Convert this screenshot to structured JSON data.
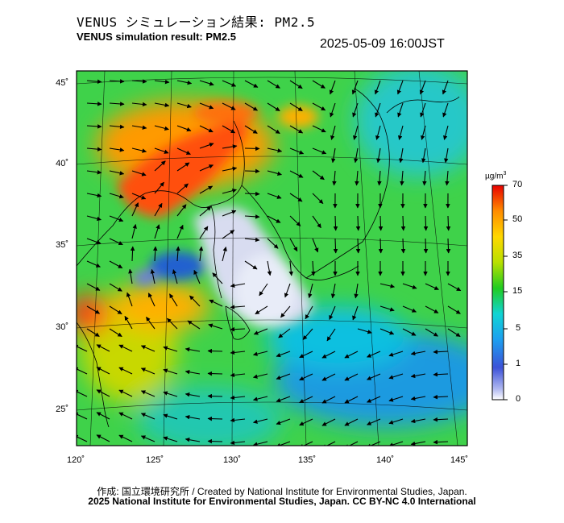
{
  "header": {
    "title_jp": "VENUS シミュレーション結果: PM2.5",
    "title_en": "VENUS simulation result: PM2.5",
    "timestamp": "2025-05-09 16:00JST"
  },
  "map": {
    "lat_ticks": [
      "45˚",
      "40˚",
      "35˚",
      "30˚",
      "25˚"
    ],
    "lon_ticks": [
      "120˚",
      "125˚",
      "130˚",
      "135˚",
      "140˚",
      "145˚"
    ],
    "colors": {
      "background_low": "#3fd24a",
      "high_pm": "#ff3a10",
      "clean_area": "#d8dcf0",
      "ocean_blue": "#1e9ae0"
    }
  },
  "colorbar": {
    "unit_main": "µg/m",
    "unit_sup": "3",
    "ticks": [
      "70",
      "50",
      "35",
      "15",
      "5",
      "1",
      "0"
    ],
    "colors": [
      "#ffffff",
      "#3c52d8",
      "#1d9ff0",
      "#10d4d4",
      "#20cc20",
      "#b8e000",
      "#ffd800",
      "#ff8c00",
      "#e80000"
    ]
  },
  "footer": {
    "credit": "作成: 国立環境研究所 / Created by National Institute for Environmental Studies, Japan.",
    "license": "2025 National Institute for Environmental Studies, Japan. CC BY-NC 4.0 International"
  }
}
